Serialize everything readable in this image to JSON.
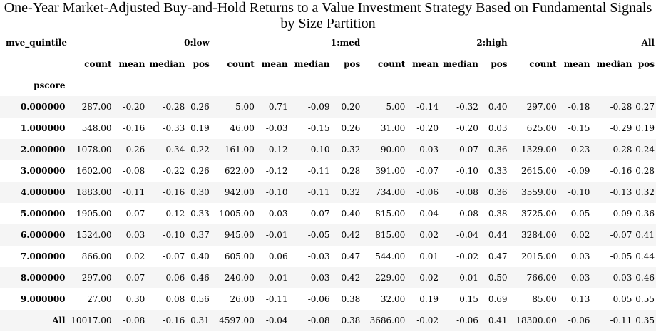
{
  "title": "One-Year Market-Adjusted Buy-and-Hold Returns to a Value Investment Strategy Based on Fundamental Signals by Size Partition",
  "index": {
    "columns_name": "mve_quintile",
    "rows_name": "pscore"
  },
  "groups": [
    "0:low",
    "1:med",
    "2:high",
    "All"
  ],
  "metrics": [
    "count",
    "mean",
    "median",
    "pos"
  ],
  "rows": [
    {
      "label": "0.000000",
      "cells": [
        "287.00",
        "-0.20",
        "-0.28",
        "0.26",
        "5.00",
        "0.71",
        "-0.09",
        "0.20",
        "5.00",
        "-0.14",
        "-0.32",
        "0.40",
        "297.00",
        "-0.18",
        "-0.28",
        "0.27"
      ]
    },
    {
      "label": "1.000000",
      "cells": [
        "548.00",
        "-0.16",
        "-0.33",
        "0.19",
        "46.00",
        "-0.03",
        "-0.15",
        "0.26",
        "31.00",
        "-0.20",
        "-0.20",
        "0.03",
        "625.00",
        "-0.15",
        "-0.29",
        "0.19"
      ]
    },
    {
      "label": "2.000000",
      "cells": [
        "1078.00",
        "-0.26",
        "-0.34",
        "0.22",
        "161.00",
        "-0.12",
        "-0.10",
        "0.32",
        "90.00",
        "-0.03",
        "-0.07",
        "0.36",
        "1329.00",
        "-0.23",
        "-0.28",
        "0.24"
      ]
    },
    {
      "label": "3.000000",
      "cells": [
        "1602.00",
        "-0.08",
        "-0.22",
        "0.26",
        "622.00",
        "-0.12",
        "-0.11",
        "0.28",
        "391.00",
        "-0.07",
        "-0.10",
        "0.33",
        "2615.00",
        "-0.09",
        "-0.16",
        "0.28"
      ]
    },
    {
      "label": "4.000000",
      "cells": [
        "1883.00",
        "-0.11",
        "-0.16",
        "0.30",
        "942.00",
        "-0.10",
        "-0.11",
        "0.32",
        "734.00",
        "-0.06",
        "-0.08",
        "0.36",
        "3559.00",
        "-0.10",
        "-0.13",
        "0.32"
      ]
    },
    {
      "label": "5.000000",
      "cells": [
        "1905.00",
        "-0.07",
        "-0.12",
        "0.33",
        "1005.00",
        "-0.03",
        "-0.07",
        "0.40",
        "815.00",
        "-0.04",
        "-0.08",
        "0.38",
        "3725.00",
        "-0.05",
        "-0.09",
        "0.36"
      ]
    },
    {
      "label": "6.000000",
      "cells": [
        "1524.00",
        "0.03",
        "-0.10",
        "0.37",
        "945.00",
        "-0.01",
        "-0.05",
        "0.42",
        "815.00",
        "0.02",
        "-0.04",
        "0.44",
        "3284.00",
        "0.02",
        "-0.07",
        "0.41"
      ]
    },
    {
      "label": "7.000000",
      "cells": [
        "866.00",
        "0.02",
        "-0.07",
        "0.40",
        "605.00",
        "0.06",
        "-0.03",
        "0.47",
        "544.00",
        "0.01",
        "-0.02",
        "0.47",
        "2015.00",
        "0.03",
        "-0.05",
        "0.44"
      ]
    },
    {
      "label": "8.000000",
      "cells": [
        "297.00",
        "0.07",
        "-0.06",
        "0.46",
        "240.00",
        "0.01",
        "-0.03",
        "0.42",
        "229.00",
        "0.02",
        "0.01",
        "0.50",
        "766.00",
        "0.03",
        "-0.03",
        "0.46"
      ]
    },
    {
      "label": "9.000000",
      "cells": [
        "27.00",
        "0.30",
        "0.08",
        "0.56",
        "26.00",
        "-0.11",
        "-0.06",
        "0.38",
        "32.00",
        "0.19",
        "0.15",
        "0.69",
        "85.00",
        "0.13",
        "0.05",
        "0.55"
      ]
    },
    {
      "label": "All",
      "cells": [
        "10017.00",
        "-0.08",
        "-0.16",
        "0.31",
        "4597.00",
        "-0.04",
        "-0.08",
        "0.38",
        "3686.00",
        "-0.02",
        "-0.06",
        "0.41",
        "18300.00",
        "-0.06",
        "-0.11",
        "0.35"
      ]
    }
  ]
}
